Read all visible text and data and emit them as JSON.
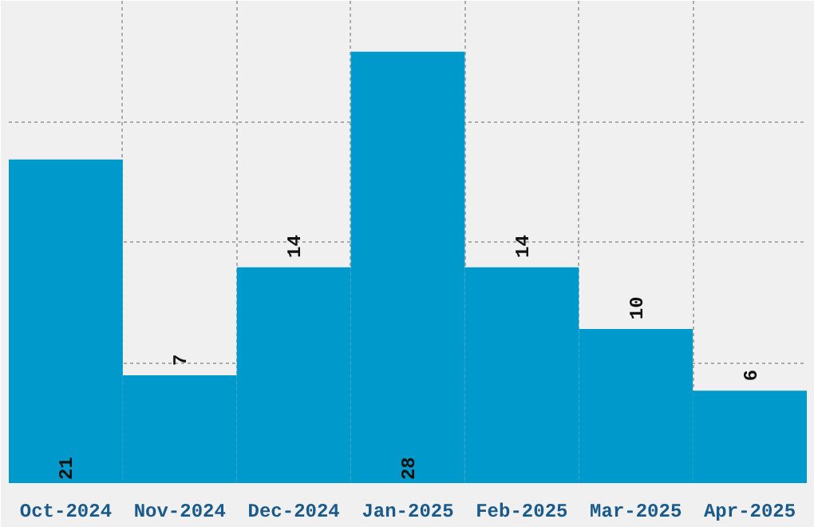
{
  "chart_data": {
    "type": "bar",
    "categories": [
      "Oct-2024",
      "Nov-2024",
      "Dec-2024",
      "Jan-2025",
      "Feb-2025",
      "Mar-2025",
      "Apr-2025"
    ],
    "values": [
      21,
      7,
      14,
      28,
      14,
      10,
      6
    ],
    "color": "#0099cc",
    "ylim": [
      0,
      31.3
    ],
    "grid": true,
    "data_labels": true,
    "tick_labels": "x"
  }
}
